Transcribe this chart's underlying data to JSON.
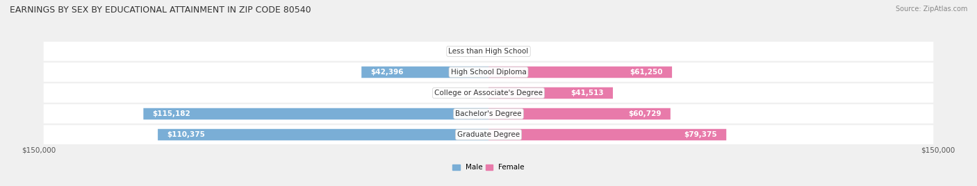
{
  "title": "EARNINGS BY SEX BY EDUCATIONAL ATTAINMENT IN ZIP CODE 80540",
  "source": "Source: ZipAtlas.com",
  "categories": [
    "Less than High School",
    "High School Diploma",
    "College or Associate's Degree",
    "Bachelor's Degree",
    "Graduate Degree"
  ],
  "male_values": [
    0,
    42396,
    0,
    115182,
    110375
  ],
  "female_values": [
    0,
    61250,
    41513,
    60729,
    79375
  ],
  "male_color": "#7aaed6",
  "female_color": "#e87aaa",
  "male_label": "Male",
  "female_label": "Female",
  "x_max": 150000,
  "bg_color": "#f0f0f0",
  "bar_height": 0.55,
  "title_fontsize": 9,
  "label_fontsize": 7.5,
  "tick_fontsize": 7.5,
  "source_fontsize": 7
}
